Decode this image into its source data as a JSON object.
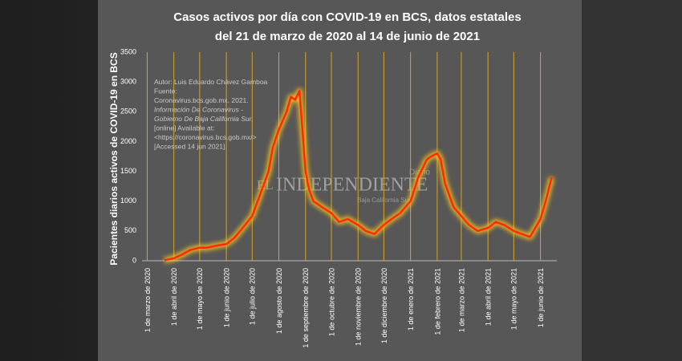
{
  "chart_data": {
    "type": "line",
    "title": "Casos activos por día con COVID-19 en BCS, datos estatales",
    "subtitle": "del 21 de marzo de 2020 al 14 de junio de 2021",
    "y_label": "Pacientes diarios activos de COVID-19 en BCS",
    "annotation_lines": [
      "Autor: Luis Eduardo Chávez Gamboa",
      "Fuente:",
      "Coronavirus.bcs.gob.mx. 2021.",
      "Información De Coronavirus -",
      "Gobierno De Baja California Sur.",
      "[online] Available at:",
      "<https://coronavirus.bcs.gob.mx/>",
      "[Accessed 14   jun 2021]."
    ],
    "watermark": {
      "prefix": "EL",
      "name": "INDEPENDIENTE",
      "top": "Diario",
      "bottom": "Baja California Sur"
    },
    "x": [
      "2020-03-21",
      "2020-04-01",
      "2020-04-10",
      "2020-04-20",
      "2020-05-01",
      "2020-05-10",
      "2020-05-20",
      "2020-06-01",
      "2020-06-10",
      "2020-06-20",
      "2020-07-01",
      "2020-07-10",
      "2020-07-20",
      "2020-07-25",
      "2020-08-01",
      "2020-08-10",
      "2020-08-15",
      "2020-08-20",
      "2020-08-25",
      "2020-09-01",
      "2020-09-05",
      "2020-09-10",
      "2020-09-20",
      "2020-10-01",
      "2020-10-10",
      "2020-10-20",
      "2020-11-01",
      "2020-11-10",
      "2020-11-20",
      "2020-12-01",
      "2020-12-10",
      "2020-12-20",
      "2021-01-01",
      "2021-01-10",
      "2021-01-20",
      "2021-01-25",
      "2021-02-01",
      "2021-02-05",
      "2021-02-10",
      "2021-02-20",
      "2021-03-01",
      "2021-03-10",
      "2021-03-20",
      "2021-04-01",
      "2021-04-10",
      "2021-04-20",
      "2021-05-01",
      "2021-05-10",
      "2021-05-20",
      "2021-06-01",
      "2021-06-07",
      "2021-06-14"
    ],
    "series": [
      {
        "name": "Casos activos",
        "color": "#ff2a00",
        "glow_color": "#ffc21a",
        "values": [
          10,
          40,
          100,
          180,
          220,
          220,
          250,
          280,
          380,
          550,
          750,
          1100,
          1500,
          1900,
          2200,
          2500,
          2750,
          2700,
          2850,
          1500,
          1200,
          1000,
          900,
          800,
          650,
          700,
          600,
          500,
          450,
          600,
          700,
          800,
          1000,
          1400,
          1700,
          1750,
          1800,
          1700,
          1300,
          900,
          750,
          600,
          500,
          550,
          650,
          600,
          500,
          450,
          400,
          700,
          1000,
          1400
        ]
      }
    ],
    "xlim": [
      "2020-02-24",
      "2021-06-20"
    ],
    "xticks": [
      {
        "value": "2020-03-01",
        "label": "1 de marzo de 2020"
      },
      {
        "value": "2020-04-01",
        "label": "1 de abril de 2020"
      },
      {
        "value": "2020-05-01",
        "label": "1 de mayo de 2020"
      },
      {
        "value": "2020-06-01",
        "label": "1 de junio de 2020"
      },
      {
        "value": "2020-07-01",
        "label": "1 de julio de 2020"
      },
      {
        "value": "2020-08-01",
        "label": "1 de agosto de 2020"
      },
      {
        "value": "2020-09-01",
        "label": "1 de septiembre de 2020"
      },
      {
        "value": "2020-10-01",
        "label": "1 de octubre de 2020"
      },
      {
        "value": "2020-11-01",
        "label": "1 de noviembre de 2020"
      },
      {
        "value": "2020-12-01",
        "label": "1 de diciembre de 2020"
      },
      {
        "value": "2021-01-01",
        "label": "1 de enero de 2021"
      },
      {
        "value": "2021-02-01",
        "label": "1 de febrero de 2021"
      },
      {
        "value": "2021-03-01",
        "label": "1 de marzo de 2021"
      },
      {
        "value": "2021-04-01",
        "label": "1 de abril de 2021"
      },
      {
        "value": "2021-05-01",
        "label": "1 de mayo de 2021"
      },
      {
        "value": "2021-06-01",
        "label": "1 de junio de 2021"
      }
    ],
    "ylim": [
      0,
      3500
    ],
    "yticks": [
      0,
      500,
      1000,
      1500,
      2000,
      2500,
      3000,
      3500
    ],
    "grid": true,
    "grid_color": "#d4a52a"
  }
}
